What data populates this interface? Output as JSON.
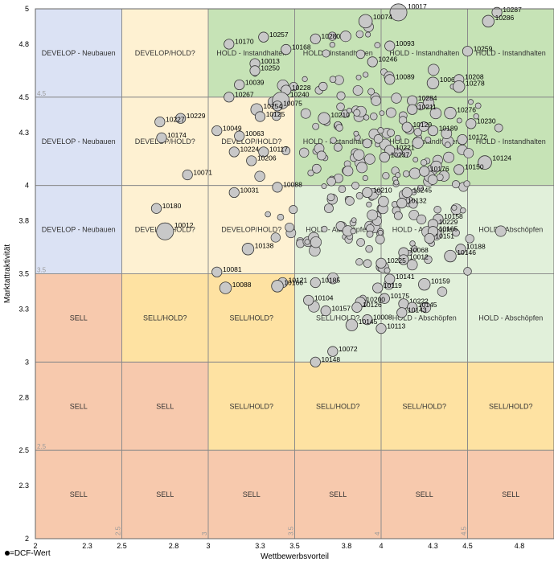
{
  "chart_data": {
    "type": "scatter",
    "xlabel": "Wettbewerbsvorteil",
    "ylabel": "Marktattraktivität",
    "legend": "=DCF-Wert",
    "xlim": [
      2,
      5
    ],
    "ylim": [
      2,
      5
    ],
    "xticks": [
      "2",
      "2.3",
      "2.5",
      "2.8",
      "3",
      "3.3",
      "3.5",
      "3.8",
      "4",
      "4.3",
      "4.5",
      "4.8"
    ],
    "yticks": [
      "2",
      "2.3",
      "2.5",
      "2.8",
      "3",
      "3.3",
      "3.5",
      "3.8",
      "4",
      "4.3",
      "4.5",
      "4.8",
      "5"
    ],
    "inner_x_marks": [
      "2.5",
      "3",
      "3.5",
      "4",
      "4.5"
    ],
    "inner_y_marks": [
      "2.5",
      "3.5",
      "4.5"
    ],
    "grid_colors": {
      "develop": "#dbe2f4",
      "develop_hold": "#fef1d2",
      "hold": "#c6e3b6",
      "hold_light": "#e1f0da",
      "sell_hold": "#fee2a2",
      "sell": "#f7c9ad"
    },
    "cells": [
      {
        "col": 0,
        "row": 0,
        "label": "DEVELOP - Neubauen",
        "fill": "develop"
      },
      {
        "col": 1,
        "row": 0,
        "label": "DEVELOP/HOLD?",
        "fill": "develop_hold"
      },
      {
        "col": 2,
        "row": 0,
        "label": "HOLD - Instandhalten",
        "fill": "hold"
      },
      {
        "col": 3,
        "row": 0,
        "label": "HOLD - Instandhalten",
        "fill": "hold"
      },
      {
        "col": 4,
        "row": 0,
        "label": "HOLD - Instandhalten",
        "fill": "hold"
      },
      {
        "col": 5,
        "row": 0,
        "label": "HOLD - Instandhalten",
        "fill": "hold"
      },
      {
        "col": 0,
        "row": 1,
        "label": "DEVELOP - Neubauen",
        "fill": "develop"
      },
      {
        "col": 1,
        "row": 1,
        "label": "DEVELOP/HOLD?",
        "fill": "develop_hold"
      },
      {
        "col": 2,
        "row": 1,
        "label": "DEVELOP/HOLD?",
        "fill": "develop_hold"
      },
      {
        "col": 3,
        "row": 1,
        "label": "HOLD - Instandhalten",
        "fill": "hold"
      },
      {
        "col": 4,
        "row": 1,
        "label": "HOLD - Instandhalten",
        "fill": "hold"
      },
      {
        "col": 5,
        "row": 1,
        "label": "HOLD - Instandhalten",
        "fill": "hold"
      },
      {
        "col": 0,
        "row": 2,
        "label": "DEVELOP - Neubauen",
        "fill": "develop"
      },
      {
        "col": 1,
        "row": 2,
        "label": "DEVELOP/HOLD?",
        "fill": "develop_hold"
      },
      {
        "col": 2,
        "row": 2,
        "label": "DEVELOP/HOLD?",
        "fill": "develop_hold"
      },
      {
        "col": 3,
        "row": 2,
        "label": "HOLD - Abschöpfen",
        "fill": "hold_light"
      },
      {
        "col": 4,
        "row": 2,
        "label": "HOLD - Abschöpfen",
        "fill": "hold_light"
      },
      {
        "col": 5,
        "row": 2,
        "label": "HOLD - Abschöpfen",
        "fill": "hold_light"
      },
      {
        "col": 0,
        "row": 3,
        "label": "SELL",
        "fill": "sell"
      },
      {
        "col": 1,
        "row": 3,
        "label": "SELL/HOLD?",
        "fill": "sell_hold"
      },
      {
        "col": 2,
        "row": 3,
        "label": "SELL/HOLD?",
        "fill": "sell_hold"
      },
      {
        "col": 3,
        "row": 3,
        "label": "SELL/HOLD?",
        "fill": "hold_light"
      },
      {
        "col": 4,
        "row": 3,
        "label": "HOLD - Abschöpfen",
        "fill": "hold_light"
      },
      {
        "col": 5,
        "row": 3,
        "label": "HOLD - Abschöpfen",
        "fill": "hold_light"
      },
      {
        "col": 0,
        "row": 4,
        "label": "SELL",
        "fill": "sell"
      },
      {
        "col": 1,
        "row": 4,
        "label": "SELL",
        "fill": "sell"
      },
      {
        "col": 2,
        "row": 4,
        "label": "SELL/HOLD?",
        "fill": "sell_hold"
      },
      {
        "col": 3,
        "row": 4,
        "label": "SELL/HOLD?",
        "fill": "sell_hold"
      },
      {
        "col": 4,
        "row": 4,
        "label": "SELL/HOLD?",
        "fill": "sell_hold"
      },
      {
        "col": 5,
        "row": 4,
        "label": "SELL/HOLD?",
        "fill": "sell_hold"
      },
      {
        "col": 0,
        "row": 5,
        "label": "SELL",
        "fill": "sell"
      },
      {
        "col": 1,
        "row": 5,
        "label": "SELL",
        "fill": "sell"
      },
      {
        "col": 2,
        "row": 5,
        "label": "SELL",
        "fill": "sell"
      },
      {
        "col": 3,
        "row": 5,
        "label": "SELL",
        "fill": "sell"
      },
      {
        "col": 4,
        "row": 5,
        "label": "SELL",
        "fill": "sell"
      },
      {
        "col": 5,
        "row": 5,
        "label": "SELL",
        "fill": "sell"
      }
    ],
    "points": [
      {
        "id": "10017",
        "x": 4.1,
        "y": 4.98,
        "r": 3
      },
      {
        "id": "10287",
        "x": 4.67,
        "y": 4.98,
        "r": 1
      },
      {
        "id": "10286",
        "x": 4.62,
        "y": 4.93,
        "r": 1.5
      },
      {
        "id": "10074",
        "x": 3.91,
        "y": 4.93,
        "r": 2
      },
      {
        "id": "10280",
        "x": 3.62,
        "y": 4.83,
        "r": 1
      },
      {
        "id": "10257",
        "x": 3.32,
        "y": 4.84,
        "r": 1
      },
      {
        "id": "10170",
        "x": 3.12,
        "y": 4.8,
        "r": 1
      },
      {
        "id": "10168",
        "x": 3.45,
        "y": 4.77,
        "r": 1
      },
      {
        "id": "10093",
        "x": 4.05,
        "y": 4.79,
        "r": 1
      },
      {
        "id": "10259",
        "x": 4.5,
        "y": 4.76,
        "r": 1
      },
      {
        "id": "10013",
        "x": 3.27,
        "y": 4.69,
        "r": 1
      },
      {
        "id": "10250",
        "x": 3.27,
        "y": 4.65,
        "r": 1
      },
      {
        "id": "10246",
        "x": 3.95,
        "y": 4.7,
        "r": 1
      },
      {
        "id": "10089",
        "x": 4.05,
        "y": 4.6,
        "r": 1
      },
      {
        "id": "10061",
        "x": 4.3,
        "y": 4.58,
        "r": 1.5
      },
      {
        "id": "10208",
        "x": 4.45,
        "y": 4.6,
        "r": 1
      },
      {
        "id": "10278",
        "x": 4.45,
        "y": 4.56,
        "r": 1.5
      },
      {
        "id": "10039",
        "x": 3.18,
        "y": 4.57,
        "r": 1
      },
      {
        "id": "10228",
        "x": 3.45,
        "y": 4.54,
        "r": 1
      },
      {
        "id": "10267",
        "x": 3.12,
        "y": 4.5,
        "r": 1
      },
      {
        "id": "10240",
        "x": 3.42,
        "y": 4.48,
        "r": 3
      },
      {
        "id": "10075",
        "x": 3.4,
        "y": 4.45,
        "r": 1
      },
      {
        "id": "10284",
        "x": 4.18,
        "y": 4.48,
        "r": 1
      },
      {
        "id": "10211",
        "x": 4.18,
        "y": 4.43,
        "r": 1
      },
      {
        "id": "10254",
        "x": 3.28,
        "y": 4.43,
        "r": 1.5
      },
      {
        "id": "10229",
        "x": 2.84,
        "y": 4.38,
        "r": 1
      },
      {
        "id": "10227",
        "x": 2.72,
        "y": 4.36,
        "r": 1
      },
      {
        "id": "10125",
        "x": 3.3,
        "y": 4.39,
        "r": 1
      },
      {
        "id": "10276",
        "x": 4.4,
        "y": 4.41,
        "r": 1.5
      },
      {
        "id": "10210",
        "x": 3.67,
        "y": 4.38,
        "r": 1.5
      },
      {
        "id": "10230",
        "x": 4.52,
        "y": 4.35,
        "r": 1
      },
      {
        "id": "10049",
        "x": 3.05,
        "y": 4.31,
        "r": 1
      },
      {
        "id": "10063",
        "x": 3.18,
        "y": 4.28,
        "r": 1
      },
      {
        "id": "10129",
        "x": 4.15,
        "y": 4.33,
        "r": 1
      },
      {
        "id": "10189",
        "x": 4.3,
        "y": 4.31,
        "r": 1
      },
      {
        "id": "10174",
        "x": 2.73,
        "y": 4.27,
        "r": 1
      },
      {
        "id": "10172",
        "x": 4.47,
        "y": 4.26,
        "r": 1
      },
      {
        "id": "10221",
        "x": 4.05,
        "y": 4.2,
        "r": 1
      },
      {
        "id": "10237",
        "x": 4.02,
        "y": 4.16,
        "r": 1
      },
      {
        "id": "10224",
        "x": 3.15,
        "y": 4.19,
        "r": 1
      },
      {
        "id": "10117",
        "x": 3.32,
        "y": 4.19,
        "r": 1
      },
      {
        "id": "10124",
        "x": 4.6,
        "y": 4.13,
        "r": 2
      },
      {
        "id": "10206",
        "x": 3.25,
        "y": 4.14,
        "r": 1
      },
      {
        "id": "10071",
        "x": 2.88,
        "y": 4.06,
        "r": 1
      },
      {
        "id": "10176",
        "x": 4.25,
        "y": 4.08,
        "r": 1
      },
      {
        "id": "10150",
        "x": 4.45,
        "y": 4.09,
        "r": 1
      },
      {
        "id": "10088",
        "x": 3.4,
        "y": 3.99,
        "r": 1
      },
      {
        "id": "10031",
        "x": 3.15,
        "y": 3.96,
        "r": 1
      },
      {
        "id": "10245",
        "x": 4.15,
        "y": 3.96,
        "r": 1
      },
      {
        "id": "10210",
        "x": 3.92,
        "y": 3.96,
        "r": 1
      },
      {
        "id": "10132",
        "x": 4.12,
        "y": 3.9,
        "r": 1
      },
      {
        "id": "10180",
        "x": 2.7,
        "y": 3.87,
        "r": 1
      },
      {
        "id": "10158",
        "x": 4.33,
        "y": 3.81,
        "r": 1
      },
      {
        "id": "10229",
        "x": 4.3,
        "y": 3.78,
        "r": 1
      },
      {
        "id": "10012",
        "x": 2.75,
        "y": 3.74,
        "r": 3
      },
      {
        "id": "10165",
        "x": 4.3,
        "y": 3.74,
        "r": 1
      },
      {
        "id": "10151",
        "x": 4.28,
        "y": 3.7,
        "r": 1
      },
      {
        "id": "10138",
        "x": 3.23,
        "y": 3.64,
        "r": 1.5
      },
      {
        "id": "10188",
        "x": 4.46,
        "y": 3.64,
        "r": 1
      },
      {
        "id": "10146",
        "x": 4.4,
        "y": 3.6,
        "r": 1.5
      },
      {
        "id": "10068",
        "x": 4.13,
        "y": 3.62,
        "r": 1
      },
      {
        "id": "10012",
        "x": 4.13,
        "y": 3.58,
        "r": 1
      },
      {
        "id": "10225",
        "x": 4.0,
        "y": 3.56,
        "r": 1
      },
      {
        "id": "10081",
        "x": 3.05,
        "y": 3.51,
        "r": 1
      },
      {
        "id": "10141",
        "x": 4.05,
        "y": 3.47,
        "r": 1
      },
      {
        "id": "10185",
        "x": 3.62,
        "y": 3.45,
        "r": 1
      },
      {
        "id": "10159",
        "x": 4.25,
        "y": 3.44,
        "r": 1.5
      },
      {
        "id": "10121",
        "x": 3.43,
        "y": 3.45,
        "r": 1
      },
      {
        "id": "10166",
        "x": 3.4,
        "y": 3.43,
        "r": 1.5
      },
      {
        "id": "10088",
        "x": 3.1,
        "y": 3.42,
        "r": 1.5
      },
      {
        "id": "10119",
        "x": 3.98,
        "y": 3.42,
        "r": 1
      },
      {
        "id": "10175",
        "x": 4.02,
        "y": 3.36,
        "r": 1
      },
      {
        "id": "10222",
        "x": 4.13,
        "y": 3.33,
        "r": 1
      },
      {
        "id": "10145",
        "x": 4.18,
        "y": 3.31,
        "r": 1
      },
      {
        "id": "10104",
        "x": 3.58,
        "y": 3.35,
        "r": 1
      },
      {
        "id": "10200",
        "x": 3.88,
        "y": 3.34,
        "r": 1
      },
      {
        "id": "10126",
        "x": 3.86,
        "y": 3.31,
        "r": 1
      },
      {
        "id": "10143",
        "x": 4.12,
        "y": 3.28,
        "r": 1
      },
      {
        "id": "10157",
        "x": 3.68,
        "y": 3.29,
        "r": 1
      },
      {
        "id": "10008",
        "x": 3.92,
        "y": 3.24,
        "r": 1
      },
      {
        "id": "10145",
        "x": 3.83,
        "y": 3.21,
        "r": 1.5
      },
      {
        "id": "10113",
        "x": 4.0,
        "y": 3.19,
        "r": 1
      },
      {
        "id": "10072",
        "x": 3.72,
        "y": 3.06,
        "r": 1
      },
      {
        "id": "10148",
        "x": 3.62,
        "y": 3.0,
        "r": 1
      }
    ],
    "blob_seed": 7,
    "blob_count": 230,
    "blob_xrange": [
      3.45,
      4.55
    ],
    "blob_yrange": [
      3.5,
      4.75
    ]
  }
}
